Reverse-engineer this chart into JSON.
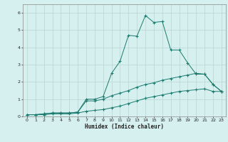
{
  "xlabel": "Humidex (Indice chaleur)",
  "x_values": [
    0,
    1,
    2,
    3,
    4,
    5,
    6,
    7,
    8,
    9,
    10,
    11,
    12,
    13,
    14,
    15,
    16,
    17,
    18,
    19,
    20,
    21,
    22,
    23
  ],
  "line1": [
    0.1,
    0.1,
    0.15,
    0.2,
    0.2,
    0.2,
    0.25,
    1.0,
    1.0,
    1.15,
    2.5,
    3.2,
    4.7,
    4.65,
    5.85,
    5.45,
    5.5,
    3.85,
    3.85,
    3.1,
    2.45,
    2.45,
    1.85,
    1.45
  ],
  "line2": [
    0.1,
    0.1,
    0.15,
    0.2,
    0.2,
    0.2,
    0.25,
    0.9,
    0.9,
    1.0,
    1.2,
    1.35,
    1.5,
    1.7,
    1.85,
    1.95,
    2.1,
    2.2,
    2.3,
    2.4,
    2.5,
    2.45,
    1.85,
    1.45
  ],
  "line3": [
    0.1,
    0.1,
    0.1,
    0.15,
    0.15,
    0.15,
    0.2,
    0.3,
    0.35,
    0.4,
    0.5,
    0.6,
    0.75,
    0.9,
    1.05,
    1.15,
    1.25,
    1.35,
    1.45,
    1.5,
    1.55,
    1.6,
    1.45,
    1.45
  ],
  "line_color": "#1a7a6e",
  "bg_color": "#d6f0ef",
  "grid_color": "#b8d4d2",
  "ylim": [
    0,
    6.5
  ],
  "xlim": [
    -0.5,
    23.5
  ],
  "yticks": [
    0,
    1,
    2,
    3,
    4,
    5,
    6
  ],
  "xticks": [
    0,
    1,
    2,
    3,
    4,
    5,
    6,
    7,
    8,
    9,
    10,
    11,
    12,
    13,
    14,
    15,
    16,
    17,
    18,
    19,
    20,
    21,
    22,
    23
  ]
}
